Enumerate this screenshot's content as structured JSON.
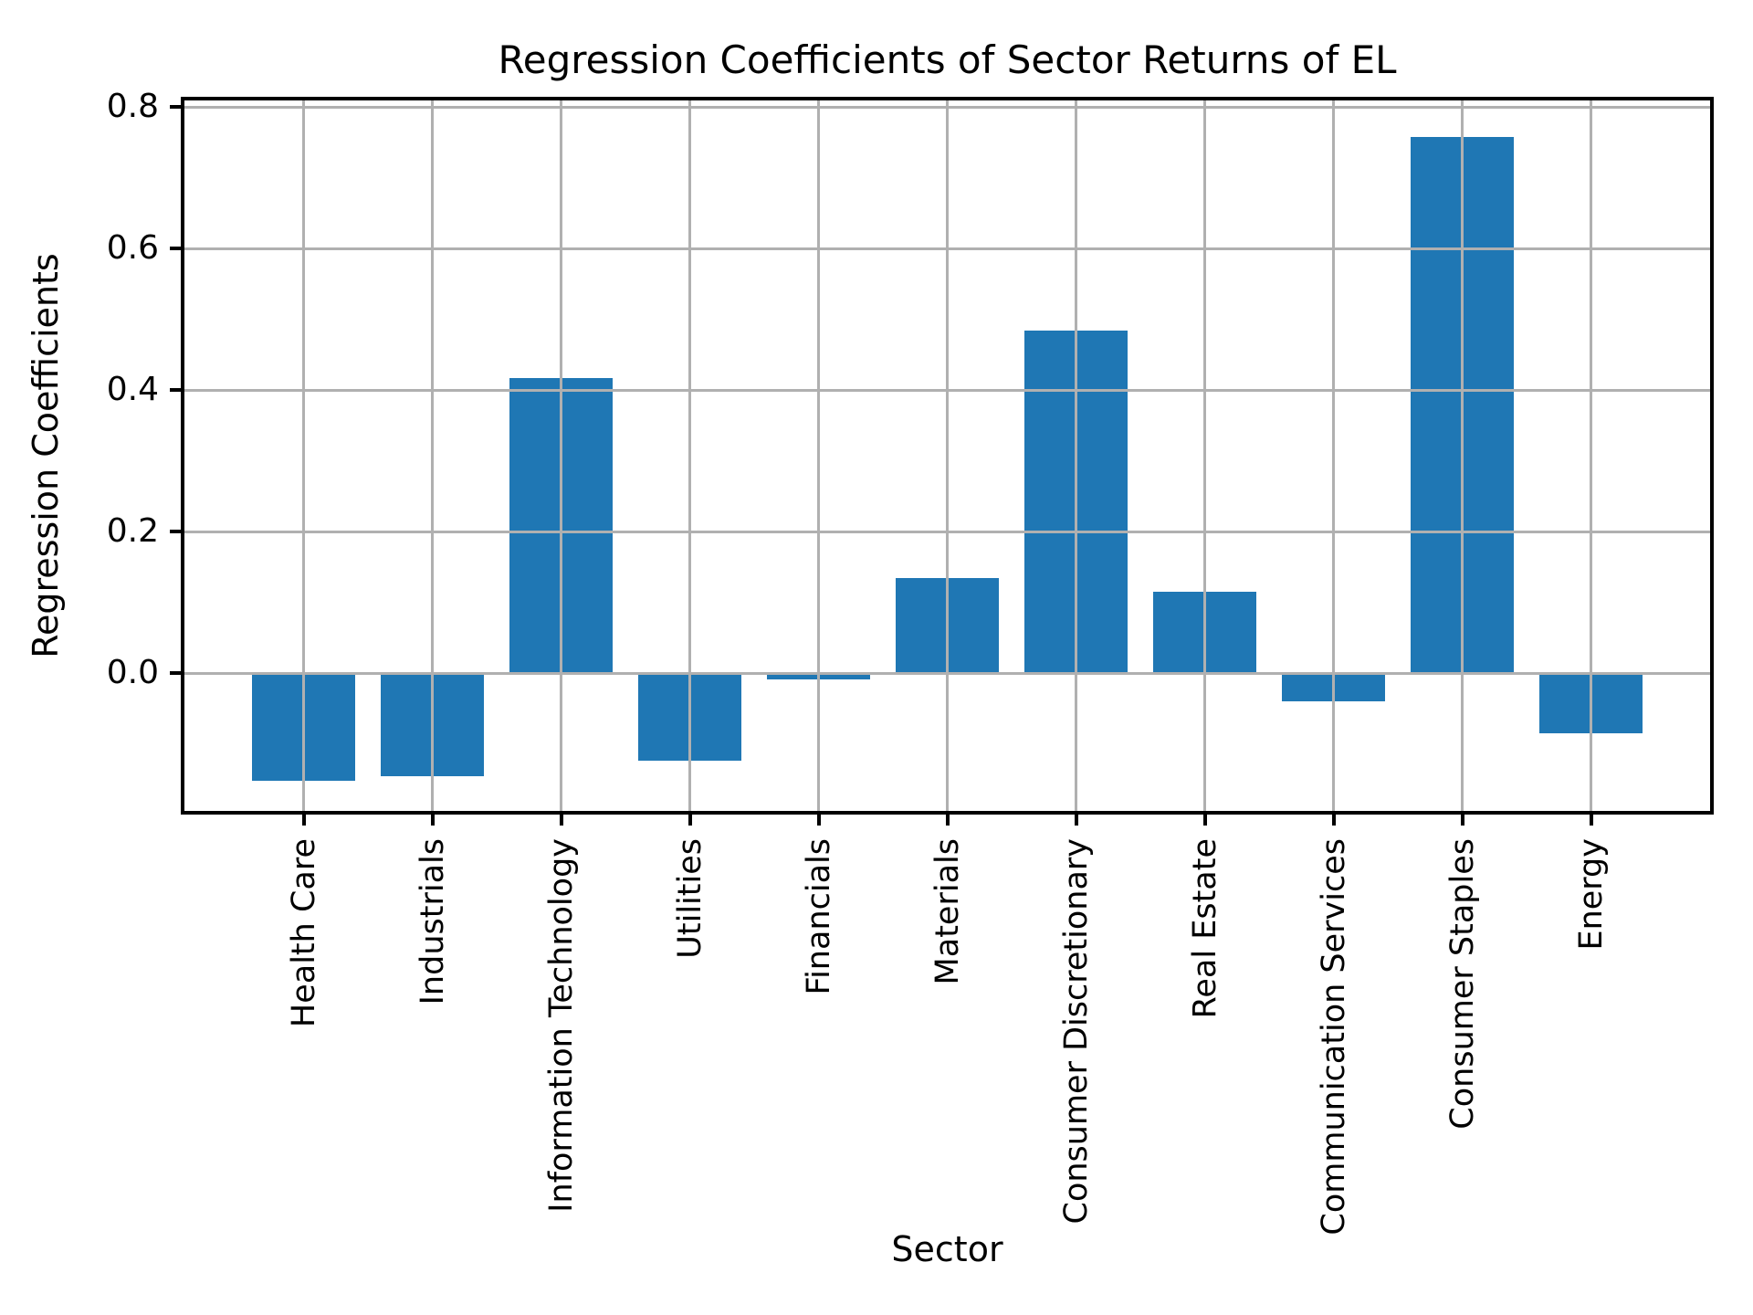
{
  "chart_data": {
    "type": "bar",
    "title": "Regression Coefficients of Sector Returns of EL",
    "xlabel": "Sector",
    "ylabel": "Regression Coefficients",
    "categories": [
      "Health Care",
      "Industrials",
      "Information Technology",
      "Utilities",
      "Financials",
      "Materials",
      "Consumer Discretionary",
      "Real Estate",
      "Communication Services",
      "Consumer Staples",
      "Energy"
    ],
    "values": [
      -0.152,
      -0.146,
      0.417,
      -0.123,
      -0.009,
      0.135,
      0.484,
      0.115,
      -0.04,
      0.758,
      -0.085
    ],
    "yticks": [
      0.0,
      0.2,
      0.4,
      0.6,
      0.8
    ],
    "ytick_labels": [
      "0.0",
      "0.2",
      "0.4",
      "0.6",
      "0.8"
    ],
    "ylim": [
      -0.197,
      0.812
    ],
    "grid": true,
    "legend": "none",
    "colors": {
      "bar": "#1f77b4",
      "grid": "#b0b0b0",
      "spine": "#000000",
      "background": "#ffffff",
      "text": "#000000"
    }
  }
}
